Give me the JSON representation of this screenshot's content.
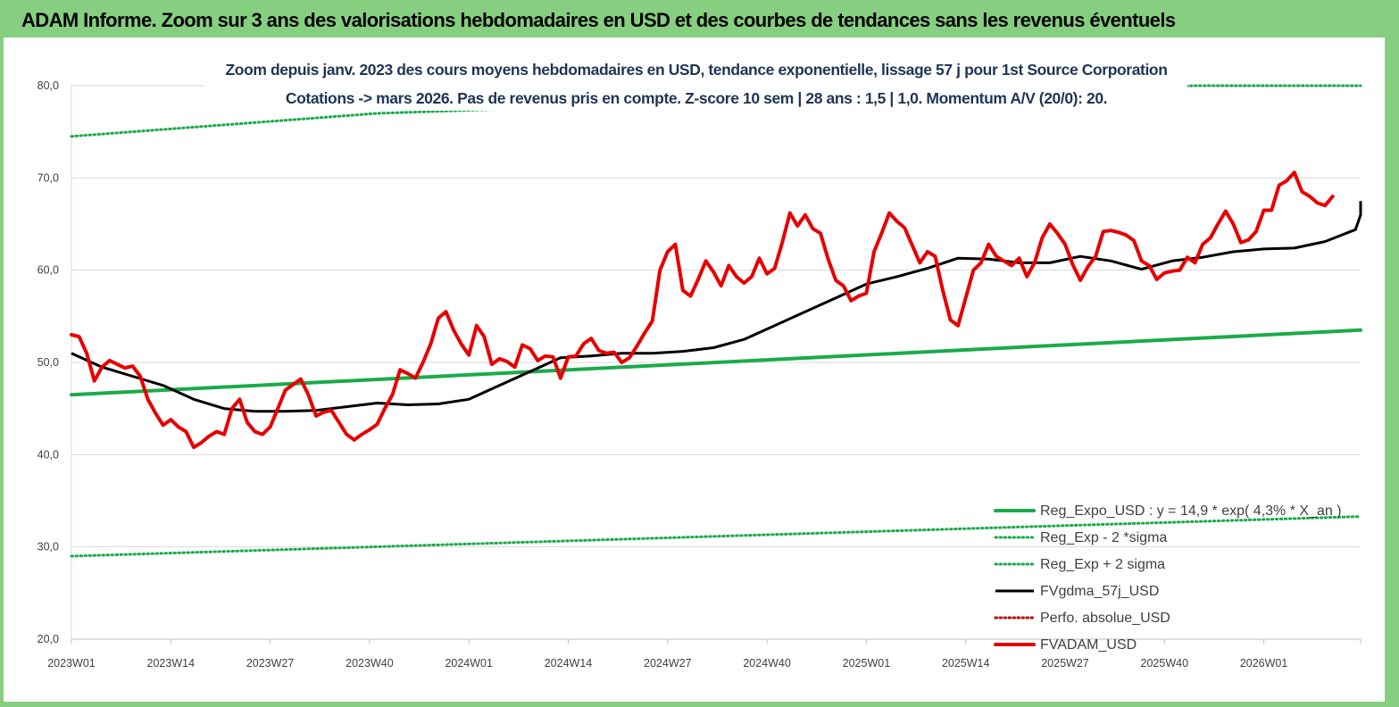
{
  "header": {
    "title": "ADAM Informe. Zoom sur 3 ans des valorisations hebdomadaires en USD et des courbes de tendances sans les revenus éventuels",
    "background": "#86cf80"
  },
  "chart_data": {
    "type": "line",
    "title_line1": "Zoom depuis janv. 2023 des cours moyens hebdomadaires en USD, tendance exponentielle, lissage 57 j pour 1st Source Corporation",
    "title_line2": "Cotations -> mars 2026. Pas de revenus pris en compte. Z-score 10 sem  | 28 ans : 1,5 | 1,0. Momentum A/V (20/0): 20.",
    "xlabel": "",
    "ylabel": "",
    "ylim": [
      20,
      80
    ],
    "y_ticks": [
      "80,0",
      "70,0",
      "60,0",
      "50,0",
      "40,0",
      "30,0",
      "20,0"
    ],
    "x_ticks": [
      "2023W01",
      "2023W14",
      "2023W27",
      "2023W40",
      "2024W01",
      "2024W14",
      "2024W27",
      "2024W40",
      "2025W01",
      "2025W14",
      "2025W27",
      "2025W40",
      "2026W01"
    ],
    "x_range_weeks": [
      0,
      169
    ],
    "grid": "horizontal",
    "legend_position": "bottom-right",
    "series": [
      {
        "name": "Reg_Expo_USD : y = 14,9 * exp( 4,3% *  X_an )",
        "style": "solid-thick",
        "color": "#1aab4b",
        "points": [
          [
            0,
            46.5
          ],
          [
            169,
            53.5
          ]
        ]
      },
      {
        "name": "Reg_Exp - 2 *sigma",
        "style": "dotted",
        "color": "#1aab4b",
        "points": [
          [
            0,
            29.0
          ],
          [
            169,
            33.3
          ]
        ]
      },
      {
        "name": "Reg_Exp + 2 sigma",
        "style": "dotted",
        "color": "#1aab4b",
        "points": [
          [
            0,
            74.5
          ],
          [
            40,
            77.0
          ],
          [
            147,
            80.0
          ],
          [
            169,
            80.0
          ]
        ]
      },
      {
        "name": "FVgdma_57j_USD",
        "style": "solid",
        "color": "#000000",
        "points": [
          [
            0,
            51.0
          ],
          [
            4,
            49.5
          ],
          [
            8,
            48.5
          ],
          [
            12,
            47.5
          ],
          [
            16,
            46.0
          ],
          [
            20,
            45.0
          ],
          [
            24,
            44.7
          ],
          [
            28,
            44.7
          ],
          [
            32,
            44.8
          ],
          [
            36,
            45.2
          ],
          [
            40,
            45.6
          ],
          [
            44,
            45.4
          ],
          [
            48,
            45.5
          ],
          [
            52,
            46.0
          ],
          [
            56,
            47.5
          ],
          [
            60,
            49.0
          ],
          [
            64,
            50.5
          ],
          [
            68,
            50.7
          ],
          [
            72,
            51.0
          ],
          [
            76,
            51.0
          ],
          [
            80,
            51.2
          ],
          [
            84,
            51.6
          ],
          [
            88,
            52.5
          ],
          [
            92,
            54.0
          ],
          [
            96,
            55.5
          ],
          [
            100,
            57.0
          ],
          [
            104,
            58.5
          ],
          [
            108,
            59.3
          ],
          [
            112,
            60.2
          ],
          [
            116,
            61.3
          ],
          [
            120,
            61.2
          ],
          [
            124,
            60.8
          ],
          [
            128,
            60.8
          ],
          [
            132,
            61.5
          ],
          [
            136,
            61.0
          ],
          [
            140,
            60.1
          ],
          [
            144,
            61.0
          ],
          [
            148,
            61.4
          ],
          [
            152,
            62.0
          ],
          [
            156,
            62.3
          ],
          [
            160,
            62.4
          ],
          [
            164,
            63.1
          ],
          [
            168,
            64.4
          ],
          [
            172,
            66.0
          ],
          [
            176,
            67.0
          ],
          [
            180,
            67.5
          ]
        ]
      },
      {
        "name": "Perfo. absolue_USD",
        "style": "dotted",
        "color": "#c00000",
        "points": []
      },
      {
        "name": "FVADAM_USD",
        "style": "solid-thick",
        "color": "#e60000",
        "points": [
          [
            0,
            53.0
          ],
          [
            1,
            52.8
          ],
          [
            2,
            51.0
          ],
          [
            3,
            48.0
          ],
          [
            4,
            49.5
          ],
          [
            5,
            50.2
          ],
          [
            6,
            49.8
          ],
          [
            7,
            49.4
          ],
          [
            8,
            49.6
          ],
          [
            9,
            48.5
          ],
          [
            10,
            46.0
          ],
          [
            11,
            44.5
          ],
          [
            12,
            43.2
          ],
          [
            13,
            43.8
          ],
          [
            14,
            43.0
          ],
          [
            15,
            42.5
          ],
          [
            16,
            40.8
          ],
          [
            17,
            41.3
          ],
          [
            18,
            42.0
          ],
          [
            19,
            42.5
          ],
          [
            20,
            42.2
          ],
          [
            21,
            45.0
          ],
          [
            22,
            46.0
          ],
          [
            23,
            43.5
          ],
          [
            24,
            42.5
          ],
          [
            25,
            42.2
          ],
          [
            26,
            43.0
          ],
          [
            27,
            45.0
          ],
          [
            28,
            47.0
          ],
          [
            29,
            47.6
          ],
          [
            30,
            48.2
          ],
          [
            31,
            46.5
          ],
          [
            32,
            44.2
          ],
          [
            33,
            44.6
          ],
          [
            34,
            44.8
          ],
          [
            35,
            43.5
          ],
          [
            36,
            42.2
          ],
          [
            37,
            41.6
          ],
          [
            38,
            42.2
          ],
          [
            39,
            42.7
          ],
          [
            40,
            43.3
          ],
          [
            41,
            45.0
          ],
          [
            42,
            46.5
          ],
          [
            43,
            49.2
          ],
          [
            44,
            48.8
          ],
          [
            45,
            48.3
          ],
          [
            46,
            50.0
          ],
          [
            47,
            52.0
          ],
          [
            48,
            54.8
          ],
          [
            49,
            55.5
          ],
          [
            50,
            53.5
          ],
          [
            51,
            52.0
          ],
          [
            52,
            50.8
          ],
          [
            53,
            54.0
          ],
          [
            54,
            52.8
          ],
          [
            55,
            49.8
          ],
          [
            56,
            50.4
          ],
          [
            57,
            50.1
          ],
          [
            58,
            49.5
          ],
          [
            59,
            51.9
          ],
          [
            60,
            51.5
          ],
          [
            61,
            50.2
          ],
          [
            62,
            50.7
          ],
          [
            63,
            50.6
          ],
          [
            64,
            48.3
          ],
          [
            65,
            50.6
          ],
          [
            66,
            50.7
          ],
          [
            67,
            52.0
          ],
          [
            68,
            52.6
          ],
          [
            69,
            51.3
          ],
          [
            70,
            51.0
          ],
          [
            71,
            51.1
          ],
          [
            72,
            50.0
          ],
          [
            73,
            50.5
          ],
          [
            74,
            51.8
          ],
          [
            75,
            53.2
          ],
          [
            76,
            54.5
          ],
          [
            77,
            60.0
          ],
          [
            78,
            62.0
          ],
          [
            79,
            62.8
          ],
          [
            80,
            57.8
          ],
          [
            81,
            57.2
          ],
          [
            82,
            59.0
          ],
          [
            83,
            61.0
          ],
          [
            84,
            59.8
          ],
          [
            85,
            58.3
          ],
          [
            86,
            60.5
          ],
          [
            87,
            59.3
          ],
          [
            88,
            58.6
          ],
          [
            89,
            59.3
          ],
          [
            90,
            61.3
          ],
          [
            91,
            59.6
          ],
          [
            92,
            60.2
          ],
          [
            93,
            63.0
          ],
          [
            94,
            66.2
          ],
          [
            95,
            64.8
          ],
          [
            96,
            66.0
          ],
          [
            97,
            64.5
          ],
          [
            98,
            64.0
          ],
          [
            99,
            61.2
          ],
          [
            100,
            58.9
          ],
          [
            101,
            58.3
          ],
          [
            102,
            56.7
          ],
          [
            103,
            57.2
          ],
          [
            104,
            57.5
          ],
          [
            105,
            62.0
          ],
          [
            106,
            64.0
          ],
          [
            107,
            66.2
          ],
          [
            108,
            65.3
          ],
          [
            109,
            64.6
          ],
          [
            110,
            62.7
          ],
          [
            111,
            60.8
          ],
          [
            112,
            62.0
          ],
          [
            113,
            61.5
          ],
          [
            114,
            57.8
          ],
          [
            115,
            54.6
          ],
          [
            116,
            54.0
          ],
          [
            117,
            57.0
          ],
          [
            118,
            60.0
          ],
          [
            119,
            60.8
          ],
          [
            120,
            62.8
          ],
          [
            121,
            61.5
          ],
          [
            122,
            61.0
          ],
          [
            123,
            60.5
          ],
          [
            124,
            61.3
          ],
          [
            125,
            59.3
          ],
          [
            126,
            60.8
          ],
          [
            127,
            63.5
          ],
          [
            128,
            65.0
          ],
          [
            129,
            64.0
          ],
          [
            130,
            62.8
          ],
          [
            131,
            60.6
          ],
          [
            132,
            58.9
          ],
          [
            133,
            60.4
          ],
          [
            134,
            61.5
          ],
          [
            135,
            64.2
          ],
          [
            136,
            64.3
          ],
          [
            137,
            64.1
          ],
          [
            138,
            63.8
          ],
          [
            139,
            63.2
          ],
          [
            140,
            61.0
          ],
          [
            141,
            60.5
          ],
          [
            142,
            59.0
          ],
          [
            143,
            59.7
          ],
          [
            144,
            59.9
          ],
          [
            145,
            60.0
          ],
          [
            146,
            61.4
          ],
          [
            147,
            60.8
          ],
          [
            148,
            62.8
          ],
          [
            149,
            63.5
          ],
          [
            150,
            65.0
          ],
          [
            151,
            66.4
          ],
          [
            152,
            65.0
          ],
          [
            153,
            63.0
          ],
          [
            154,
            63.3
          ],
          [
            155,
            64.2
          ],
          [
            156,
            66.5
          ],
          [
            157,
            66.5
          ],
          [
            158,
            69.2
          ],
          [
            159,
            69.7
          ],
          [
            160,
            70.6
          ],
          [
            161,
            68.5
          ],
          [
            162,
            68.0
          ],
          [
            163,
            67.3
          ],
          [
            164,
            67.0
          ],
          [
            165,
            68.0
          ]
        ]
      }
    ]
  }
}
